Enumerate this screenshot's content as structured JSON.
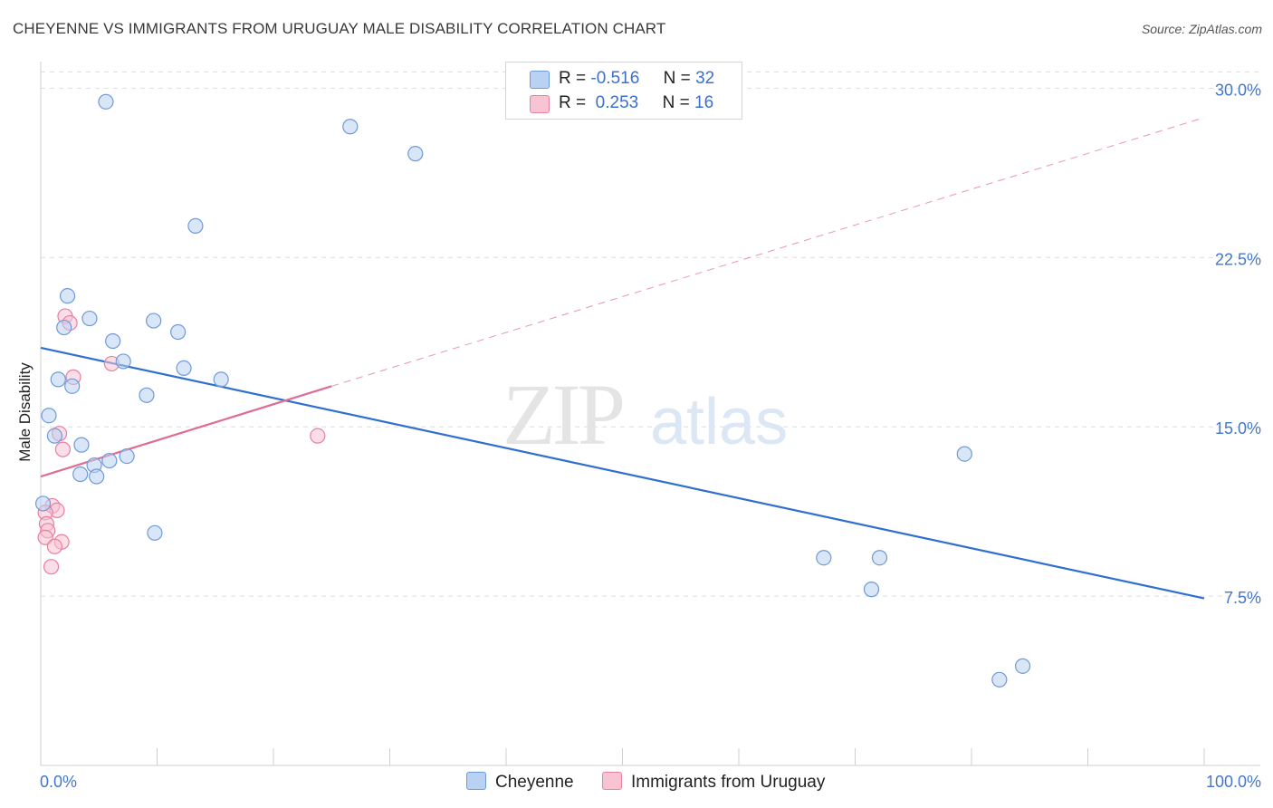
{
  "title": "CHEYENNE VS IMMIGRANTS FROM URUGUAY MALE DISABILITY CORRELATION CHART",
  "source": "Source: ZipAtlas.com",
  "watermark": {
    "zip": "ZIP",
    "atlas": "atlas"
  },
  "legend": {
    "rows": [
      {
        "r_label": "R =",
        "r_value": "-0.516",
        "n_label": "N =",
        "n_value": "32"
      },
      {
        "r_label": "R =",
        "r_value": " 0.253",
        "n_label": "N =",
        "n_value": "16"
      }
    ]
  },
  "colors": {
    "cheyenne_fill": "#b9d2f3",
    "cheyenne_stroke": "#6f9ad8",
    "cheyenne_line": "#2f6fcf",
    "uruguay_fill": "#f8c3d3",
    "uruguay_stroke": "#e6809f",
    "uruguay_line": "#e06b94",
    "tick_text": "#4477cc",
    "grid": "#dddddd"
  },
  "chart_data": {
    "type": "scatter",
    "title": "CHEYENNE VS IMMIGRANTS FROM URUGUAY MALE DISABILITY CORRELATION CHART",
    "xlabel": "",
    "ylabel": "Male Disability",
    "xlim": [
      0,
      100
    ],
    "ylim": [
      0,
      31.5
    ],
    "x_tick_labels": [
      "0.0%",
      "100.0%"
    ],
    "y_ticks": [
      7.5,
      15.0,
      22.5,
      30.0
    ],
    "y_tick_labels": [
      "7.5%",
      "15.0%",
      "22.5%",
      "30.0%"
    ],
    "grid": true,
    "legend_position": "top-center",
    "series": [
      {
        "name": "Cheyenne",
        "r": -0.516,
        "n": 32,
        "points": [
          {
            "x": 5.6,
            "y": 29.4
          },
          {
            "x": 26.6,
            "y": 28.3
          },
          {
            "x": 32.2,
            "y": 27.1
          },
          {
            "x": 13.3,
            "y": 23.9
          },
          {
            "x": 2.3,
            "y": 20.8
          },
          {
            "x": 4.2,
            "y": 19.8
          },
          {
            "x": 9.7,
            "y": 19.7
          },
          {
            "x": 2.0,
            "y": 19.4
          },
          {
            "x": 11.8,
            "y": 19.2
          },
          {
            "x": 6.2,
            "y": 18.8
          },
          {
            "x": 7.1,
            "y": 17.9
          },
          {
            "x": 12.3,
            "y": 17.6
          },
          {
            "x": 1.5,
            "y": 17.1
          },
          {
            "x": 15.5,
            "y": 17.1
          },
          {
            "x": 2.7,
            "y": 16.8
          },
          {
            "x": 9.1,
            "y": 16.4
          },
          {
            "x": 0.7,
            "y": 15.5
          },
          {
            "x": 1.2,
            "y": 14.6
          },
          {
            "x": 3.5,
            "y": 14.2
          },
          {
            "x": 7.4,
            "y": 13.7
          },
          {
            "x": 5.9,
            "y": 13.5
          },
          {
            "x": 4.6,
            "y": 13.3
          },
          {
            "x": 3.4,
            "y": 12.9
          },
          {
            "x": 4.8,
            "y": 12.8
          },
          {
            "x": 0.2,
            "y": 11.6
          },
          {
            "x": 9.8,
            "y": 10.3
          },
          {
            "x": 79.4,
            "y": 13.8
          },
          {
            "x": 67.3,
            "y": 9.2
          },
          {
            "x": 72.1,
            "y": 9.2
          },
          {
            "x": 71.4,
            "y": 7.8
          },
          {
            "x": 84.4,
            "y": 4.4
          },
          {
            "x": 82.4,
            "y": 3.8
          }
        ],
        "trend": {
          "x0": 0,
          "y0": 18.5,
          "x1": 100,
          "y1": 7.4
        }
      },
      {
        "name": "Immigrants from Uruguay",
        "r": 0.253,
        "n": 16,
        "points": [
          {
            "x": 2.1,
            "y": 19.9
          },
          {
            "x": 2.5,
            "y": 19.6
          },
          {
            "x": 6.1,
            "y": 17.8
          },
          {
            "x": 2.8,
            "y": 17.2
          },
          {
            "x": 1.6,
            "y": 14.7
          },
          {
            "x": 23.8,
            "y": 14.6
          },
          {
            "x": 1.9,
            "y": 14.0
          },
          {
            "x": 1.0,
            "y": 11.5
          },
          {
            "x": 1.4,
            "y": 11.3
          },
          {
            "x": 0.4,
            "y": 11.2
          },
          {
            "x": 0.5,
            "y": 10.7
          },
          {
            "x": 0.6,
            "y": 10.4
          },
          {
            "x": 0.4,
            "y": 10.1
          },
          {
            "x": 1.8,
            "y": 9.9
          },
          {
            "x": 1.2,
            "y": 9.7
          },
          {
            "x": 0.9,
            "y": 8.8
          }
        ],
        "trend": {
          "x0": 0,
          "y0": 12.8,
          "x1": 25,
          "y1": 16.8
        },
        "trend_dashed": {
          "x0": 25,
          "y0": 16.8,
          "x1": 100,
          "y1": 28.7
        }
      }
    ]
  },
  "bottom_legend": [
    {
      "label": "Cheyenne"
    },
    {
      "label": "Immigrants from Uruguay"
    }
  ]
}
